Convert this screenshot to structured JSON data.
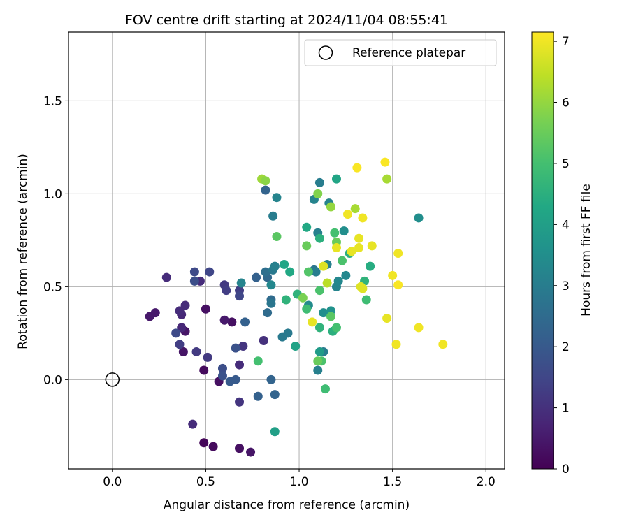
{
  "chart_data": {
    "type": "scatter",
    "title": "FOV centre drift starting at 2024/11/04 08:55:41",
    "xlabel": "Angular distance from reference (arcmin)",
    "ylabel": "Rotation from reference (arcmin)",
    "xlim": [
      -0.235,
      2.1
    ],
    "ylim": [
      -0.48,
      1.87
    ],
    "xticks": [
      0.0,
      0.5,
      1.0,
      1.5,
      2.0
    ],
    "xtick_labels": [
      "0.0",
      "0.5",
      "1.0",
      "1.5",
      "2.0"
    ],
    "yticks": [
      0.0,
      0.5,
      1.0,
      1.5
    ],
    "ytick_labels": [
      "0.0",
      "0.5",
      "1.0",
      "1.5"
    ],
    "grid": true,
    "legend": {
      "placement": "top-right",
      "entries": [
        {
          "label": "Reference platepar",
          "marker": "open-circle"
        }
      ]
    },
    "reference_point": {
      "x": 0.0,
      "y": 0.0
    },
    "colorbar": {
      "label": "Hours from first FF file",
      "colormap": "viridis",
      "range": [
        0,
        7.15
      ],
      "ticks": [
        0,
        1,
        2,
        3,
        4,
        5,
        6,
        7
      ],
      "tick_labels": [
        "0",
        "1",
        "2",
        "3",
        "4",
        "5",
        "6",
        "7"
      ]
    },
    "points": [
      {
        "x": 0.49,
        "y": -0.34,
        "h": 0.1
      },
      {
        "x": 0.54,
        "y": -0.36,
        "h": 0.2
      },
      {
        "x": 0.68,
        "y": -0.37,
        "h": 0.3
      },
      {
        "x": 0.74,
        "y": -0.39,
        "h": 0.4
      },
      {
        "x": 0.49,
        "y": 0.05,
        "h": 0.2
      },
      {
        "x": 0.57,
        "y": -0.01,
        "h": 0.3
      },
      {
        "x": 0.64,
        "y": 0.31,
        "h": 0.3
      },
      {
        "x": 0.5,
        "y": 0.38,
        "h": 0.3
      },
      {
        "x": 0.38,
        "y": 0.15,
        "h": 0.4
      },
      {
        "x": 0.39,
        "y": 0.26,
        "h": 0.4
      },
      {
        "x": 0.2,
        "y": 0.34,
        "h": 0.5
      },
      {
        "x": 0.23,
        "y": 0.36,
        "h": 0.5
      },
      {
        "x": 0.6,
        "y": 0.32,
        "h": 0.5
      },
      {
        "x": 0.43,
        "y": -0.24,
        "h": 0.9
      },
      {
        "x": 0.68,
        "y": 0.08,
        "h": 0.9
      },
      {
        "x": 0.37,
        "y": 0.28,
        "h": 0.8
      },
      {
        "x": 0.37,
        "y": 0.35,
        "h": 0.8
      },
      {
        "x": 0.36,
        "y": 0.37,
        "h": 0.9
      },
      {
        "x": 0.39,
        "y": 0.4,
        "h": 0.9
      },
      {
        "x": 0.29,
        "y": 0.55,
        "h": 0.9
      },
      {
        "x": 0.47,
        "y": 0.53,
        "h": 0.9
      },
      {
        "x": 0.81,
        "y": 0.21,
        "h": 1.0
      },
      {
        "x": 0.7,
        "y": 0.18,
        "h": 1.1
      },
      {
        "x": 0.68,
        "y": -0.12,
        "h": 1.1
      },
      {
        "x": 0.51,
        "y": 0.12,
        "h": 1.2
      },
      {
        "x": 0.45,
        "y": 0.15,
        "h": 1.2
      },
      {
        "x": 0.36,
        "y": 0.19,
        "h": 1.3
      },
      {
        "x": 0.6,
        "y": 0.51,
        "h": 1.2
      },
      {
        "x": 0.61,
        "y": 0.48,
        "h": 1.3
      },
      {
        "x": 0.68,
        "y": 0.48,
        "h": 1.3
      },
      {
        "x": 0.68,
        "y": 0.45,
        "h": 1.5
      },
      {
        "x": 0.34,
        "y": 0.25,
        "h": 1.6
      },
      {
        "x": 0.52,
        "y": 0.58,
        "h": 1.5
      },
      {
        "x": 0.44,
        "y": 0.58,
        "h": 1.6
      },
      {
        "x": 0.44,
        "y": 0.53,
        "h": 1.7
      },
      {
        "x": 0.59,
        "y": 0.06,
        "h": 1.7
      },
      {
        "x": 0.59,
        "y": 0.02,
        "h": 1.8
      },
      {
        "x": 0.66,
        "y": 0.17,
        "h": 1.8
      },
      {
        "x": 0.63,
        "y": -0.01,
        "h": 2.0
      },
      {
        "x": 0.66,
        "y": 0.0,
        "h": 2.0
      },
      {
        "x": 0.71,
        "y": 0.31,
        "h": 2.2
      },
      {
        "x": 0.78,
        "y": -0.09,
        "h": 2.2
      },
      {
        "x": 0.85,
        "y": 0.0,
        "h": 2.3
      },
      {
        "x": 0.87,
        "y": -0.08,
        "h": 2.3
      },
      {
        "x": 0.77,
        "y": 0.55,
        "h": 2.2
      },
      {
        "x": 0.82,
        "y": 1.02,
        "h": 2.3
      },
      {
        "x": 0.83,
        "y": 0.55,
        "h": 2.4
      },
      {
        "x": 0.85,
        "y": 0.43,
        "h": 2.5
      },
      {
        "x": 0.83,
        "y": 0.36,
        "h": 2.5
      },
      {
        "x": 0.82,
        "y": 0.58,
        "h": 2.6
      },
      {
        "x": 0.85,
        "y": 0.41,
        "h": 2.8
      },
      {
        "x": 0.86,
        "y": 0.59,
        "h": 2.9
      },
      {
        "x": 0.91,
        "y": 0.23,
        "h": 2.9
      },
      {
        "x": 0.94,
        "y": 0.25,
        "h": 2.9
      },
      {
        "x": 0.86,
        "y": 0.88,
        "h": 3.0
      },
      {
        "x": 0.88,
        "y": 0.98,
        "h": 3.2
      },
      {
        "x": 0.87,
        "y": 0.61,
        "h": 3.1
      },
      {
        "x": 0.69,
        "y": 0.52,
        "h": 3.2
      },
      {
        "x": 0.85,
        "y": 0.51,
        "h": 3.3
      },
      {
        "x": 1.08,
        "y": 0.59,
        "h": 2.8
      },
      {
        "x": 1.08,
        "y": 0.97,
        "h": 3.2
      },
      {
        "x": 1.11,
        "y": 1.06,
        "h": 3.0
      },
      {
        "x": 1.1,
        "y": 0.79,
        "h": 3.1
      },
      {
        "x": 1.13,
        "y": 0.15,
        "h": 3.0
      },
      {
        "x": 1.1,
        "y": 0.05,
        "h": 3.1
      },
      {
        "x": 1.15,
        "y": 0.62,
        "h": 3.1
      },
      {
        "x": 1.09,
        "y": 0.58,
        "h": 3.0
      },
      {
        "x": 1.16,
        "y": 0.95,
        "h": 3.2
      },
      {
        "x": 1.2,
        "y": 0.5,
        "h": 3.2
      },
      {
        "x": 1.21,
        "y": 0.53,
        "h": 3.3
      },
      {
        "x": 1.05,
        "y": 0.4,
        "h": 3.4
      },
      {
        "x": 1.24,
        "y": 0.8,
        "h": 3.5
      },
      {
        "x": 1.25,
        "y": 0.56,
        "h": 3.3
      },
      {
        "x": 1.13,
        "y": 0.36,
        "h": 3.5
      },
      {
        "x": 1.17,
        "y": 0.37,
        "h": 3.6
      },
      {
        "x": 1.64,
        "y": 0.87,
        "h": 3.5
      },
      {
        "x": 1.11,
        "y": 0.15,
        "h": 3.9
      },
      {
        "x": 0.87,
        "y": -0.28,
        "h": 4.0
      },
      {
        "x": 0.98,
        "y": 0.18,
        "h": 4.1
      },
      {
        "x": 0.92,
        "y": 0.62,
        "h": 4.2
      },
      {
        "x": 0.95,
        "y": 0.58,
        "h": 4.3
      },
      {
        "x": 1.04,
        "y": 0.82,
        "h": 4.3
      },
      {
        "x": 1.2,
        "y": 1.08,
        "h": 4.2
      },
      {
        "x": 1.18,
        "y": 0.26,
        "h": 4.5
      },
      {
        "x": 1.11,
        "y": 0.28,
        "h": 4.6
      },
      {
        "x": 1.11,
        "y": 0.76,
        "h": 4.5
      },
      {
        "x": 1.38,
        "y": 0.61,
        "h": 4.4
      },
      {
        "x": 1.35,
        "y": 0.53,
        "h": 4.6
      },
      {
        "x": 1.27,
        "y": 0.68,
        "h": 4.5
      },
      {
        "x": 1.36,
        "y": 0.43,
        "h": 4.9
      },
      {
        "x": 0.93,
        "y": 0.43,
        "h": 4.6
      },
      {
        "x": 0.99,
        "y": 0.46,
        "h": 4.6
      },
      {
        "x": 1.04,
        "y": 0.38,
        "h": 4.9
      },
      {
        "x": 1.14,
        "y": -0.05,
        "h": 4.9
      },
      {
        "x": 0.78,
        "y": 0.1,
        "h": 5.0
      },
      {
        "x": 1.12,
        "y": 0.1,
        "h": 5.1
      },
      {
        "x": 1.2,
        "y": 0.28,
        "h": 5.0
      },
      {
        "x": 1.19,
        "y": 0.79,
        "h": 5.0
      },
      {
        "x": 1.23,
        "y": 0.64,
        "h": 5.1
      },
      {
        "x": 1.05,
        "y": 0.58,
        "h": 5.2
      },
      {
        "x": 1.11,
        "y": 0.48,
        "h": 5.1
      },
      {
        "x": 0.88,
        "y": 0.77,
        "h": 5.3
      },
      {
        "x": 1.17,
        "y": 0.34,
        "h": 5.3
      },
      {
        "x": 1.1,
        "y": 0.1,
        "h": 5.5
      },
      {
        "x": 1.2,
        "y": 0.74,
        "h": 5.5
      },
      {
        "x": 1.04,
        "y": 0.72,
        "h": 5.5
      },
      {
        "x": 1.02,
        "y": 0.44,
        "h": 5.7
      },
      {
        "x": 1.1,
        "y": 1.0,
        "h": 5.8
      },
      {
        "x": 1.17,
        "y": 0.93,
        "h": 6.0
      },
      {
        "x": 1.3,
        "y": 0.92,
        "h": 6.2
      },
      {
        "x": 0.8,
        "y": 1.08,
        "h": 6.1
      },
      {
        "x": 0.82,
        "y": 1.07,
        "h": 5.9
      },
      {
        "x": 1.47,
        "y": 1.08,
        "h": 6.2
      },
      {
        "x": 1.15,
        "y": 0.52,
        "h": 6.4
      },
      {
        "x": 1.07,
        "y": 0.31,
        "h": 6.9
      },
      {
        "x": 1.13,
        "y": 0.61,
        "h": 6.8
      },
      {
        "x": 1.2,
        "y": 0.71,
        "h": 6.9
      },
      {
        "x": 1.28,
        "y": 0.69,
        "h": 6.9
      },
      {
        "x": 1.32,
        "y": 0.76,
        "h": 6.9
      },
      {
        "x": 1.32,
        "y": 0.71,
        "h": 6.9
      },
      {
        "x": 1.33,
        "y": 0.5,
        "h": 6.8
      },
      {
        "x": 1.34,
        "y": 0.49,
        "h": 6.8
      },
      {
        "x": 1.34,
        "y": 0.87,
        "h": 7.0
      },
      {
        "x": 1.26,
        "y": 0.89,
        "h": 7.0
      },
      {
        "x": 1.39,
        "y": 0.72,
        "h": 6.9
      },
      {
        "x": 1.31,
        "y": 1.14,
        "h": 7.1
      },
      {
        "x": 1.46,
        "y": 1.17,
        "h": 7.1
      },
      {
        "x": 1.47,
        "y": 0.33,
        "h": 6.9
      },
      {
        "x": 1.5,
        "y": 0.56,
        "h": 7.0
      },
      {
        "x": 1.52,
        "y": 0.19,
        "h": 7.0
      },
      {
        "x": 1.53,
        "y": 0.51,
        "h": 7.1
      },
      {
        "x": 1.53,
        "y": 0.68,
        "h": 7.0
      },
      {
        "x": 1.64,
        "y": 0.28,
        "h": 7.0
      },
      {
        "x": 1.77,
        "y": 0.19,
        "h": 7.0
      }
    ]
  }
}
